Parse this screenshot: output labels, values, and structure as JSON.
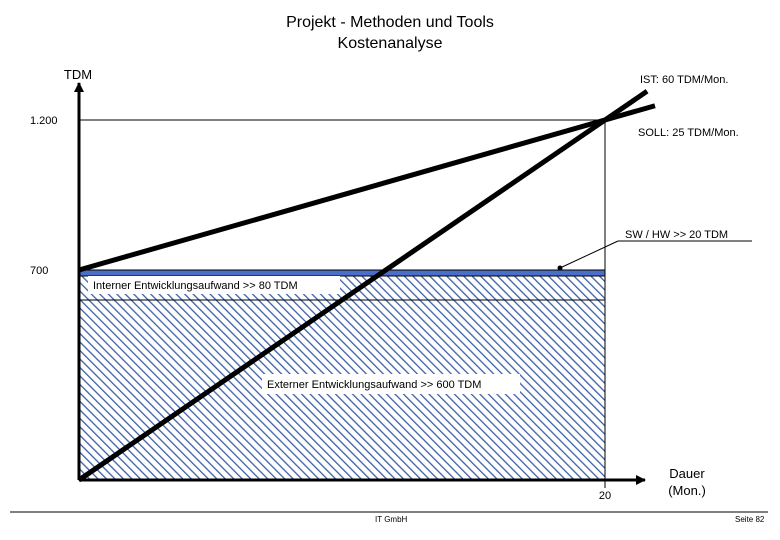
{
  "page": {
    "title": "Projekt - Methoden und Tools",
    "subtitle": "Kostenanalyse",
    "footer_left": "IT GmbH",
    "footer_right": "Seite 82"
  },
  "chart_data": {
    "type": "line",
    "title": "Kostenanalyse",
    "ylabel": "TDM",
    "xlabel": "Dauer (Mon.)",
    "xlabel_lines": [
      "Dauer",
      "(Mon.)"
    ],
    "x_ticks": [
      {
        "value": 20,
        "label": "20"
      }
    ],
    "y_ticks": [
      {
        "value": 1200,
        "label": "1.200"
      },
      {
        "value": 700,
        "label": "700"
      }
    ],
    "xlim": [
      0,
      20
    ],
    "ylim": [
      0,
      1200
    ],
    "series": [
      {
        "name": "IST: 60 TDM/Mon.",
        "label": "IST:   60 TDM/Mon.",
        "x": [
          0,
          20
        ],
        "y": [
          0,
          1200
        ],
        "color": "#000000"
      },
      {
        "name": "SOLL: 25 TDM/Mon.",
        "label": "SOLL: 25 TDM/Mon.",
        "x": [
          0,
          20
        ],
        "y": [
          700,
          1200
        ],
        "color": "#000000"
      }
    ],
    "stacked_areas": [
      {
        "label": "Externer Entwicklungsaufwand >> 600 TDM",
        "from": 0,
        "to": 600,
        "pattern": "hatch",
        "color": "#3a5fa8"
      },
      {
        "label": "Interner Entwicklungsaufwand >> 80 TDM",
        "from": 600,
        "to": 680,
        "pattern": "hatch",
        "color": "#3a5fa8"
      },
      {
        "label": "SW / HW >> 20 TDM",
        "from": 680,
        "to": 700,
        "pattern": "solid",
        "color": "#4a6fc8"
      }
    ],
    "grid": false,
    "legend": "none"
  }
}
